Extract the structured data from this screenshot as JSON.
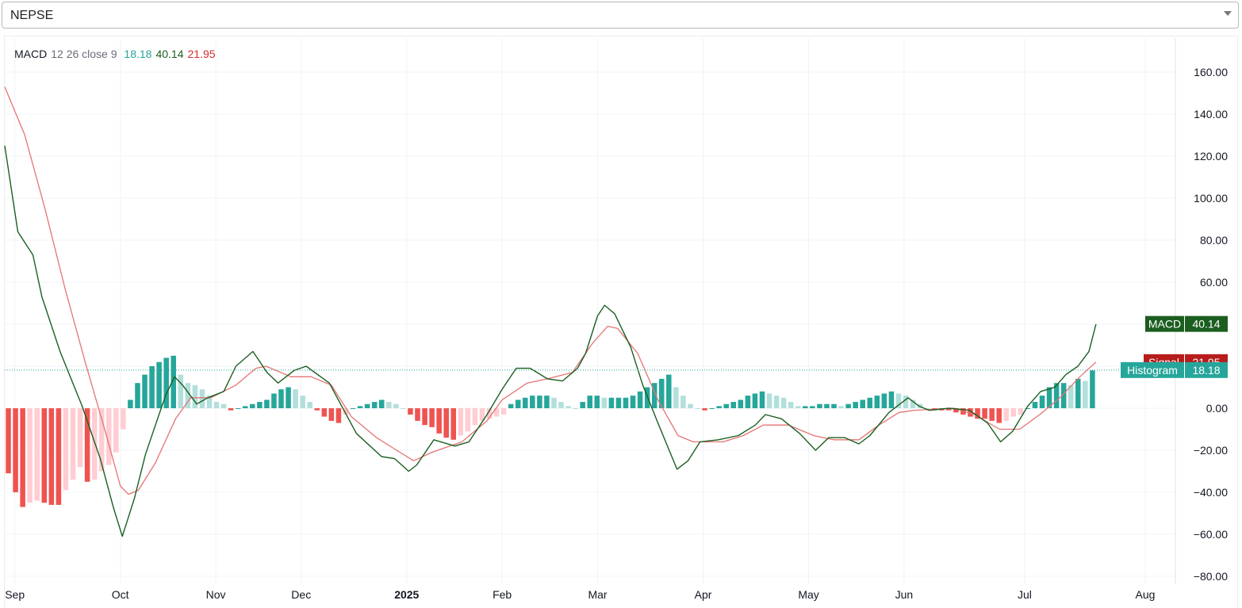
{
  "symbol_select": {
    "value": "NEPSE"
  },
  "legend": {
    "name": "MACD",
    "params": "12 26 close 9",
    "histogram": "18.18",
    "macd": "40.14",
    "signal": "21.95"
  },
  "colors": {
    "macd_line": "#1b5e20",
    "signal_line": "#e57373",
    "hist_pos_strong": "#26a69a",
    "hist_pos_weak": "#b2dfdb",
    "hist_neg_strong": "#ef5350",
    "hist_neg_weak": "#ffcdd2",
    "label_macd": "#1b5e20",
    "label_signal": "#b71c1c",
    "label_histogram": "#26a69a"
  },
  "chart_data": {
    "type": "line",
    "indicator": "MACD 12 26 close 9",
    "ylim": [
      -80,
      170
    ],
    "y_ticks": [
      -80,
      -60,
      -40,
      -20,
      0,
      20,
      40,
      60,
      80,
      100,
      120,
      140,
      160
    ],
    "y_tick_labels": [
      "−80.00",
      "−60.00",
      "−40.00",
      "−20.00",
      "0.00",
      "20.00",
      "40.00",
      "60.00",
      "80.00",
      "100.00",
      "120.00",
      "140.00",
      "160.00"
    ],
    "x_ticks": [
      {
        "label": "Sep",
        "t": 0.5,
        "bold": false
      },
      {
        "label": "Oct",
        "t": 11,
        "bold": false
      },
      {
        "label": "Nov",
        "t": 20.5,
        "bold": false
      },
      {
        "label": "Dec",
        "t": 29,
        "bold": false
      },
      {
        "label": "2025",
        "t": 39.5,
        "bold": true
      },
      {
        "label": "Feb",
        "t": 49,
        "bold": false
      },
      {
        "label": "Mar",
        "t": 58.5,
        "bold": false
      },
      {
        "label": "Apr",
        "t": 69,
        "bold": false
      },
      {
        "label": "May",
        "t": 79.5,
        "bold": false
      },
      {
        "label": "Jun",
        "t": 89,
        "bold": false
      },
      {
        "label": "Jul",
        "t": 101,
        "bold": false
      },
      {
        "label": "Aug",
        "t": 113,
        "bold": false
      }
    ],
    "t_range": [
      -0.5,
      116
    ],
    "last_values": {
      "macd": "40.14",
      "signal": "21.95",
      "histogram": "18.18"
    },
    "price_labels": {
      "macd": "MACD",
      "signal": "Signal",
      "histogram": "Histogram"
    },
    "series": [
      {
        "name": "Histogram",
        "kind": "histogram",
        "values": [
          -31,
          -40,
          -47,
          -45,
          -44,
          -45,
          -46,
          -46,
          -39,
          -34,
          -28,
          -35,
          -34,
          -30,
          -27,
          -21,
          -10,
          4,
          12,
          16,
          20,
          22,
          24,
          25,
          16,
          12,
          11,
          9,
          6,
          3,
          2,
          -1,
          0,
          1,
          2,
          3,
          4,
          7,
          9,
          10,
          9,
          6,
          3,
          -1,
          -4,
          -6,
          -7,
          -3,
          0,
          1,
          2,
          3,
          4,
          3,
          2,
          0,
          -3,
          -6,
          -8,
          -9,
          -12,
          -14,
          -15,
          -13,
          -11,
          -8,
          -6,
          -5,
          -4,
          -3,
          2,
          4,
          5,
          6,
          6,
          6,
          5,
          3,
          1,
          0,
          3,
          6,
          6,
          5,
          5,
          5,
          5,
          6,
          8,
          10,
          12,
          14,
          16,
          10,
          6,
          2,
          0,
          -1,
          0,
          1,
          2,
          3,
          4,
          6,
          7,
          8,
          7,
          6,
          5,
          3,
          1,
          1,
          1,
          2,
          2,
          2,
          1,
          2,
          3,
          4,
          5,
          6,
          7,
          8,
          7,
          6,
          4,
          2,
          0,
          -1,
          -1,
          -1,
          -2,
          -3,
          -4,
          -5,
          -5,
          -6,
          -7,
          -6,
          -4,
          -3,
          0,
          3,
          6,
          10,
          12,
          12,
          11,
          14,
          13,
          18
        ],
        "note_x": "151 bars spanning the time axis from early Sep to late Jul"
      },
      {
        "name": "MACD",
        "kind": "line",
        "points": [
          [
            -0.5,
            125
          ],
          [
            0.8,
            84
          ],
          [
            2.3,
            73
          ],
          [
            3.2,
            53
          ],
          [
            5,
            27
          ],
          [
            7.2,
            1
          ],
          [
            9,
            -24
          ],
          [
            10.3,
            -47
          ],
          [
            11.2,
            -61
          ],
          [
            12.4,
            -43
          ],
          [
            13.5,
            -22
          ],
          [
            14.5,
            -8
          ],
          [
            15.5,
            6
          ],
          [
            16.4,
            15
          ],
          [
            17.2,
            11
          ],
          [
            18.6,
            2
          ],
          [
            19.7,
            5
          ],
          [
            21.3,
            8
          ],
          [
            22.5,
            20
          ],
          [
            24.2,
            27
          ],
          [
            25.6,
            17
          ],
          [
            26.7,
            12
          ],
          [
            28.3,
            18
          ],
          [
            29.5,
            20
          ],
          [
            31.8,
            12
          ],
          [
            34.5,
            -12
          ],
          [
            37,
            -23
          ],
          [
            38.3,
            -24
          ],
          [
            39.7,
            -30
          ],
          [
            40.5,
            -27
          ],
          [
            42.2,
            -15
          ],
          [
            44.3,
            -18
          ],
          [
            45.7,
            -16
          ],
          [
            47.5,
            -3
          ],
          [
            49,
            9
          ],
          [
            50.4,
            19
          ],
          [
            51.8,
            19
          ],
          [
            53.5,
            14
          ],
          [
            55,
            13
          ],
          [
            56.5,
            19
          ],
          [
            57.3,
            26
          ],
          [
            58.5,
            44
          ],
          [
            59.2,
            49
          ],
          [
            60.2,
            45
          ],
          [
            61.8,
            29
          ],
          [
            63,
            11
          ],
          [
            64.5,
            -7
          ],
          [
            66.4,
            -29
          ],
          [
            67.5,
            -25
          ],
          [
            68.7,
            -16
          ],
          [
            70.5,
            -15
          ],
          [
            72.5,
            -13
          ],
          [
            74.2,
            -8
          ],
          [
            75.2,
            -3
          ],
          [
            76.8,
            -5
          ],
          [
            78.6,
            -12
          ],
          [
            80.2,
            -20
          ],
          [
            81.5,
            -14
          ],
          [
            83.1,
            -14
          ],
          [
            84.5,
            -17
          ],
          [
            85.6,
            -13
          ],
          [
            87.5,
            -2
          ],
          [
            89.4,
            5
          ],
          [
            90.5,
            1
          ],
          [
            91.5,
            -1
          ],
          [
            93.5,
            0
          ],
          [
            95.5,
            -1
          ],
          [
            97.3,
            -7
          ],
          [
            98.6,
            -16
          ],
          [
            99.8,
            -11
          ],
          [
            101.3,
            1
          ],
          [
            102.6,
            8
          ],
          [
            104,
            10
          ],
          [
            105.1,
            16
          ],
          [
            106.3,
            20
          ],
          [
            107.4,
            27
          ],
          [
            108.1,
            40
          ]
        ]
      },
      {
        "name": "Signal",
        "kind": "line",
        "points": [
          [
            -0.5,
            153
          ],
          [
            1.5,
            130
          ],
          [
            3.5,
            95
          ],
          [
            5.5,
            57
          ],
          [
            7.5,
            22
          ],
          [
            9.5,
            -11
          ],
          [
            11,
            -37
          ],
          [
            11.8,
            -41
          ],
          [
            12.8,
            -39
          ],
          [
            14.5,
            -26
          ],
          [
            16.5,
            -5
          ],
          [
            18,
            5
          ],
          [
            20,
            5
          ],
          [
            22.5,
            11
          ],
          [
            24.5,
            19
          ],
          [
            25.5,
            20
          ],
          [
            28,
            15
          ],
          [
            30,
            15
          ],
          [
            32,
            11
          ],
          [
            34,
            -4
          ],
          [
            36.5,
            -14
          ],
          [
            38.5,
            -20
          ],
          [
            40.2,
            -25
          ],
          [
            42,
            -21
          ],
          [
            45,
            -16
          ],
          [
            47.5,
            -6
          ],
          [
            49,
            4
          ],
          [
            51.5,
            12
          ],
          [
            53.5,
            14
          ],
          [
            56,
            17
          ],
          [
            58,
            31
          ],
          [
            59.5,
            39
          ],
          [
            60.5,
            38
          ],
          [
            62.5,
            26
          ],
          [
            64.5,
            4
          ],
          [
            66.5,
            -13
          ],
          [
            68,
            -16
          ],
          [
            71,
            -16
          ],
          [
            73,
            -13
          ],
          [
            75,
            -8
          ],
          [
            77.5,
            -8
          ],
          [
            80,
            -13
          ],
          [
            82,
            -15
          ],
          [
            84.5,
            -15
          ],
          [
            86.5,
            -8
          ],
          [
            88.5,
            -2
          ],
          [
            90,
            -1
          ],
          [
            94,
            0
          ],
          [
            96,
            -3
          ],
          [
            98.5,
            -10
          ],
          [
            100.5,
            -10
          ],
          [
            102.5,
            -3
          ],
          [
            104.5,
            5
          ],
          [
            106.5,
            15
          ],
          [
            108.1,
            22
          ]
        ]
      }
    ]
  }
}
